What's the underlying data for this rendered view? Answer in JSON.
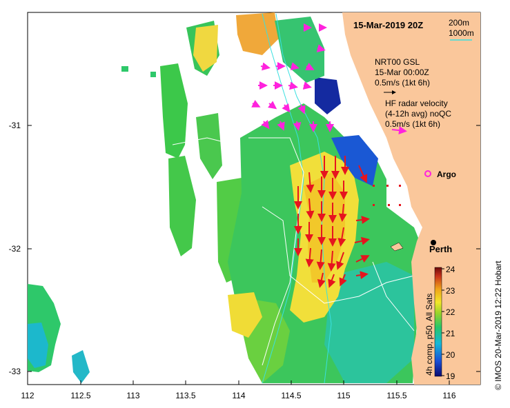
{
  "map": {
    "date_title": "15-Mar-2019 20Z",
    "lon_ticks": [
      "112",
      "112.5",
      "113",
      "113.5",
      "114",
      "114.5",
      "115",
      "115.5",
      "116"
    ],
    "lat_ticks": [
      "-31",
      "-32",
      "-33"
    ],
    "isobath_legend": {
      "line1": "200m",
      "line2": "1000m",
      "line_color": "#39e0e0"
    },
    "model_legend": {
      "line1": "NRT00 GSL",
      "line2": "15-Mar 00:00Z",
      "line3": "0.5m/s (1kt 6h)",
      "arrow_color": "#000000"
    },
    "radar_legend": {
      "line1": "HF radar velocity",
      "line2": "(4-12h avg) noQC",
      "line3": "0.5m/s (1kt 6h)",
      "arrow_color": "#ff22dd"
    },
    "argo_label": "Argo",
    "city_label": "Perth",
    "colorbar": {
      "ticks": [
        "24",
        "23",
        "22",
        "21",
        "20",
        "19"
      ],
      "caption": "4h comp, p50, All Sats",
      "colors": [
        "#0a0a70",
        "#1a4fd6",
        "#16b8d8",
        "#27c66a",
        "#9ad42a",
        "#f2e62a",
        "#f0a51a",
        "#c8321a",
        "#6b0a0a"
      ]
    },
    "credit": "©  IMOS 20-Mar-2019 12:22 Hobart",
    "colors": {
      "land": "#fac79b",
      "current_arrows": "#e6141e",
      "isobath": "#39e0e0",
      "contour": "#ffffff"
    }
  }
}
